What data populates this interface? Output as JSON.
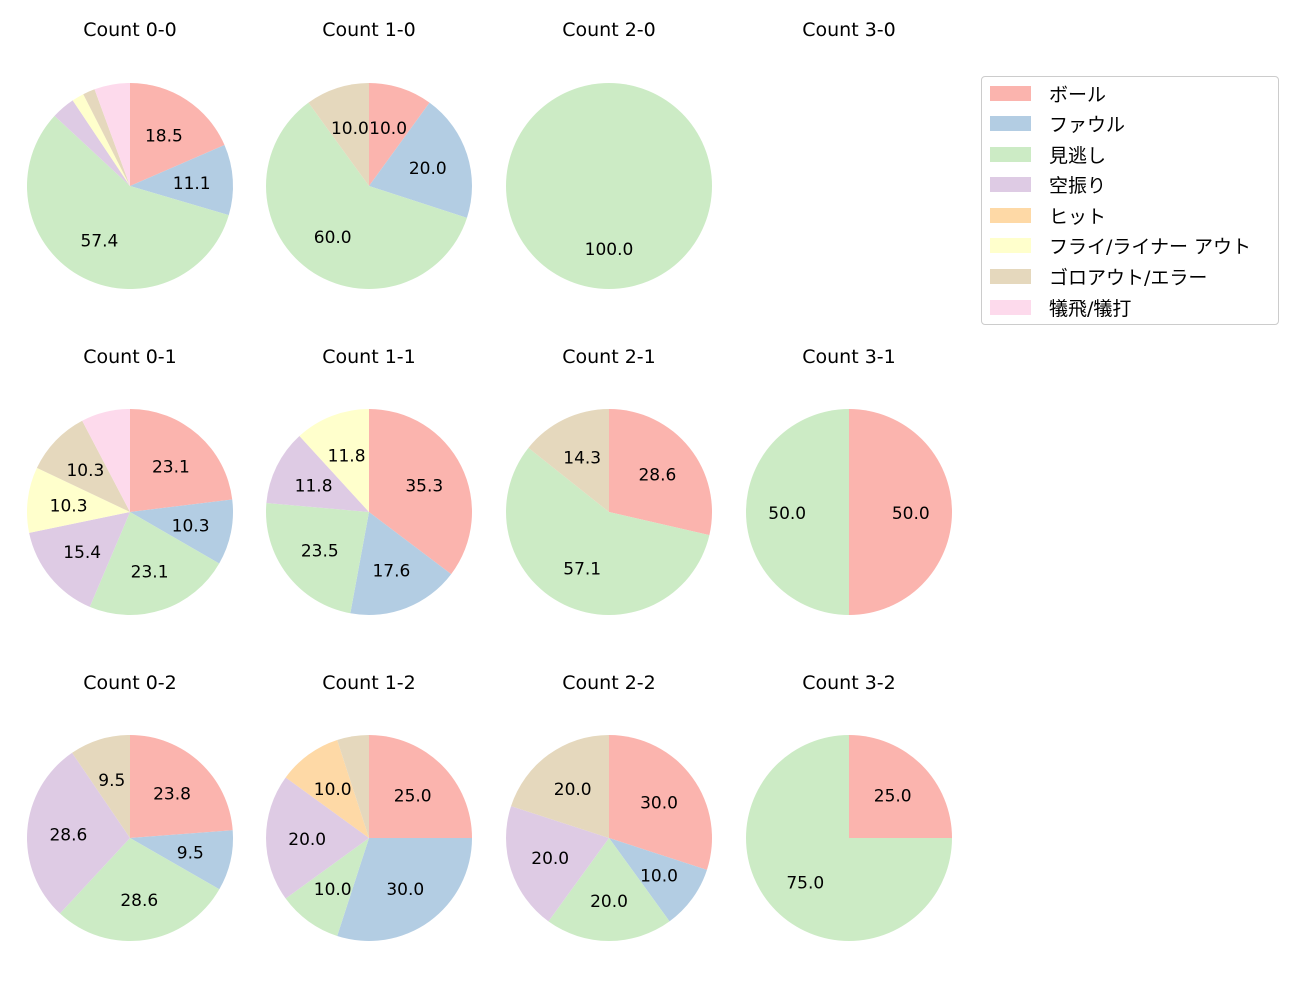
{
  "chart_data": {
    "type": "pie",
    "series_names": [
      "ボール",
      "ファウル",
      "見逃し",
      "空振り",
      "ヒット",
      "フライ/ライナー アウト",
      "ゴロアウト/エラー",
      "犠飛/犠打"
    ],
    "colors": [
      "#fbb4ae",
      "#b3cde3",
      "#ccebc5",
      "#decbe4",
      "#fed9a6",
      "#ffffcc",
      "#e5d8bd",
      "#fddaec"
    ],
    "legend_position": "top-right",
    "charts": [
      {
        "title": "Count 0-0",
        "values": [
          18.5,
          11.1,
          57.4,
          3.7,
          0,
          1.9,
          1.9,
          5.6
        ],
        "labels": [
          "18.5",
          "11.1",
          "57.4",
          "",
          "",
          "",
          "",
          ""
        ]
      },
      {
        "title": "Count 1-0",
        "values": [
          10.0,
          20.0,
          60.0,
          0,
          0,
          0,
          10.0,
          0
        ],
        "labels": [
          "10.0",
          "20.0",
          "60.0",
          "",
          "",
          "",
          "10.0",
          ""
        ]
      },
      {
        "title": "Count 2-0",
        "values": [
          0,
          0,
          100.0,
          0,
          0,
          0,
          0,
          0
        ],
        "labels": [
          "",
          "",
          "100.0",
          "",
          "",
          "",
          "",
          ""
        ]
      },
      {
        "title": "Count 3-0",
        "values": [
          0,
          0,
          0,
          0,
          0,
          0,
          0,
          0
        ],
        "labels": [
          "",
          "",
          "",
          "",
          "",
          "",
          "",
          ""
        ]
      },
      {
        "title": "Count 0-1",
        "values": [
          23.1,
          10.3,
          23.1,
          15.4,
          0,
          10.3,
          10.3,
          7.7
        ],
        "labels": [
          "23.1",
          "10.3",
          "23.1",
          "15.4",
          "",
          "10.3",
          "10.3",
          ""
        ]
      },
      {
        "title": "Count 1-1",
        "values": [
          35.3,
          17.6,
          23.5,
          11.8,
          0,
          11.8,
          0,
          0
        ],
        "labels": [
          "35.3",
          "17.6",
          "23.5",
          "11.8",
          "",
          "11.8",
          "",
          ""
        ]
      },
      {
        "title": "Count 2-1",
        "values": [
          28.6,
          0,
          57.1,
          0,
          0,
          0,
          14.3,
          0
        ],
        "labels": [
          "28.6",
          "",
          "57.1",
          "",
          "",
          "",
          "14.3",
          ""
        ]
      },
      {
        "title": "Count 3-1",
        "values": [
          50.0,
          0,
          50.0,
          0,
          0,
          0,
          0,
          0
        ],
        "labels": [
          "50.0",
          "",
          "50.0",
          "",
          "",
          "",
          "",
          ""
        ]
      },
      {
        "title": "Count 0-2",
        "values": [
          23.8,
          9.5,
          28.6,
          28.6,
          0,
          0,
          9.5,
          0
        ],
        "labels": [
          "23.8",
          "9.5",
          "28.6",
          "28.6",
          "",
          "",
          "9.5",
          ""
        ]
      },
      {
        "title": "Count 1-2",
        "values": [
          25.0,
          30.0,
          10.0,
          20.0,
          10.0,
          0,
          5.0,
          0
        ],
        "labels": [
          "25.0",
          "30.0",
          "10.0",
          "20.0",
          "10.0",
          "",
          "",
          ""
        ]
      },
      {
        "title": "Count 2-2",
        "values": [
          30.0,
          10.0,
          20.0,
          20.0,
          0,
          0,
          20.0,
          0
        ],
        "labels": [
          "30.0",
          "10.0",
          "20.0",
          "20.0",
          "",
          "",
          "20.0",
          ""
        ]
      },
      {
        "title": "Count 3-2",
        "values": [
          25.0,
          0,
          75.0,
          0,
          0,
          0,
          0,
          0
        ],
        "labels": [
          "25.0",
          "",
          "75.0",
          "",
          "",
          "",
          "",
          ""
        ]
      }
    ]
  }
}
